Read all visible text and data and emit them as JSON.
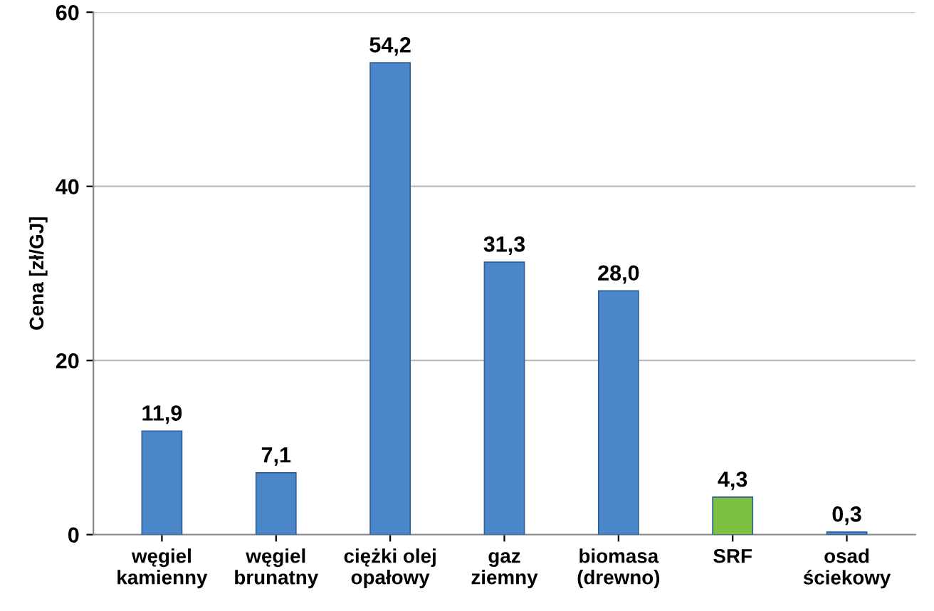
{
  "chart_data": {
    "type": "bar",
    "ylabel": "Cena [zł/GJ]",
    "categories": [
      "węgiel\nkamienny",
      "węgiel\nbrunatny",
      "ciężki olej\nopałowy",
      "gaz\nziemny",
      "biomasa\n(drewno)",
      "SRF",
      "osad\nściekowy"
    ],
    "values": [
      11.9,
      7.1,
      54.2,
      31.3,
      28.0,
      4.3,
      0.3
    ],
    "value_labels": [
      "11,9",
      "7,1",
      "54,2",
      "31,3",
      "28,0",
      "4,3",
      "0,3"
    ],
    "colors": [
      "#4a86c8",
      "#4a86c8",
      "#4a86c8",
      "#4a86c8",
      "#4a86c8",
      "#7dc142",
      "#4a86c8"
    ],
    "ylim": [
      0,
      60
    ],
    "yticks": [
      0,
      20,
      40,
      60
    ],
    "grid": "y"
  }
}
